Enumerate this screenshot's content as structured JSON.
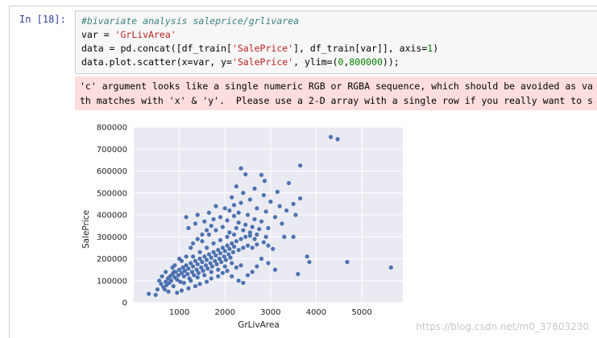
{
  "cell": {
    "prompt": "In  [18]:",
    "code_lines": [
      "#bivariate analysis saleprice/grlivarea",
      "var = 'GrLivArea'",
      "data = pd.concat([df_train['SalePrice'], df_train[var]], axis=1)",
      "data.plot.scatter(x=var, y='SalePrice', ylim=(0,800000));"
    ],
    "stderr_lines": [
      "'c' argument looks like a single numeric RGB or RGBA sequence, which should be avoided as va",
      "th matches with 'x' & 'y'.  Please use a 2-D array with a single row if you really want to s"
    ]
  },
  "watermark": "https://blog.csdn.net/m0_37803230",
  "colors": {
    "prompt": "#303f9f",
    "input_bg": "#f7f7f7",
    "stderr_bg": "#fddddd",
    "plot_bg": "#eaeaf2",
    "marker": "#4c72b0",
    "grid": "#ffffff"
  },
  "chart_data": {
    "type": "scatter",
    "title": "",
    "xlabel": "GrLivArea",
    "ylabel": "SalePrice",
    "xlim": [
      0,
      5900
    ],
    "ylim": [
      0,
      800000
    ],
    "xticks": [
      1000,
      2000,
      3000,
      4000,
      5000
    ],
    "yticks": [
      0,
      100000,
      200000,
      300000,
      400000,
      500000,
      600000,
      700000,
      800000
    ],
    "grid": true,
    "legend": "none",
    "points": [
      [
        330,
        40000
      ],
      [
        480,
        35000
      ],
      [
        520,
        60000
      ],
      [
        600,
        85000
      ],
      [
        650,
        70000
      ],
      [
        700,
        95000
      ],
      [
        720,
        80000
      ],
      [
        750,
        110000
      ],
      [
        780,
        90000
      ],
      [
        800,
        120000
      ],
      [
        820,
        100000
      ],
      [
        850,
        130000
      ],
      [
        870,
        75000
      ],
      [
        900,
        115000
      ],
      [
        920,
        140000
      ],
      [
        950,
        105000
      ],
      [
        980,
        125000
      ],
      [
        1000,
        150000
      ],
      [
        1020,
        95000
      ],
      [
        1050,
        135000
      ],
      [
        1080,
        160000
      ],
      [
        1100,
        120000
      ],
      [
        1120,
        145000
      ],
      [
        1150,
        170000
      ],
      [
        1180,
        130000
      ],
      [
        1200,
        155000
      ],
      [
        1220,
        110000
      ],
      [
        1250,
        180000
      ],
      [
        1280,
        140000
      ],
      [
        1300,
        165000
      ],
      [
        1320,
        125000
      ],
      [
        1350,
        190000
      ],
      [
        1380,
        150000
      ],
      [
        1400,
        175000
      ],
      [
        1420,
        135000
      ],
      [
        1450,
        200000
      ],
      [
        1480,
        160000
      ],
      [
        1500,
        185000
      ],
      [
        1520,
        145000
      ],
      [
        1550,
        210000
      ],
      [
        1580,
        170000
      ],
      [
        1600,
        195000
      ],
      [
        1620,
        155000
      ],
      [
        1650,
        220000
      ],
      [
        1680,
        180000
      ],
      [
        1700,
        205000
      ],
      [
        1720,
        165000
      ],
      [
        1750,
        230000
      ],
      [
        1780,
        190000
      ],
      [
        1800,
        215000
      ],
      [
        1820,
        175000
      ],
      [
        1850,
        240000
      ],
      [
        1880,
        200000
      ],
      [
        1900,
        225000
      ],
      [
        1920,
        185000
      ],
      [
        1950,
        250000
      ],
      [
        1980,
        210000
      ],
      [
        2000,
        235000
      ],
      [
        2020,
        195000
      ],
      [
        2050,
        260000
      ],
      [
        2080,
        220000
      ],
      [
        2100,
        245000
      ],
      [
        2120,
        205000
      ],
      [
        2150,
        270000
      ],
      [
        2180,
        230000
      ],
      [
        2200,
        255000
      ],
      [
        2250,
        280000
      ],
      [
        2300,
        240000
      ],
      [
        2350,
        290000
      ],
      [
        2400,
        250000
      ],
      [
        2450,
        300000
      ],
      [
        2500,
        260000
      ],
      [
        1100,
        90000
      ],
      [
        1250,
        100000
      ],
      [
        1400,
        115000
      ],
      [
        1550,
        125000
      ],
      [
        1700,
        140000
      ],
      [
        1850,
        150000
      ],
      [
        2000,
        165000
      ],
      [
        2150,
        180000
      ],
      [
        1300,
        210000
      ],
      [
        1450,
        230000
      ],
      [
        1600,
        250000
      ],
      [
        1750,
        270000
      ],
      [
        1900,
        285000
      ],
      [
        2050,
        300000
      ],
      [
        2200,
        310000
      ],
      [
        1500,
        280000
      ],
      [
        1650,
        310000
      ],
      [
        1800,
        330000
      ],
      [
        1950,
        345000
      ],
      [
        2100,
        320000
      ],
      [
        2250,
        340000
      ],
      [
        2400,
        330000
      ],
      [
        2550,
        320000
      ],
      [
        2700,
        310000
      ],
      [
        1350,
        360000
      ],
      [
        1200,
        340000
      ],
      [
        1550,
        370000
      ],
      [
        1750,
        380000
      ],
      [
        1900,
        390000
      ],
      [
        2050,
        375000
      ],
      [
        2200,
        395000
      ],
      [
        2300,
        365000
      ],
      [
        2450,
        355000
      ],
      [
        2600,
        345000
      ],
      [
        2750,
        335000
      ],
      [
        2900,
        300000
      ],
      [
        1150,
        390000
      ],
      [
        1400,
        400000
      ],
      [
        1650,
        410000
      ],
      [
        2100,
        420000
      ],
      [
        2300,
        410000
      ],
      [
        2500,
        400000
      ],
      [
        2650,
        380000
      ],
      [
        2800,
        370000
      ],
      [
        2950,
        340000
      ],
      [
        1800,
        440000
      ],
      [
        2000,
        430000
      ],
      [
        2200,
        445000
      ],
      [
        2350,
        455000
      ],
      [
        2550,
        470000
      ],
      [
        2700,
        430000
      ],
      [
        2900,
        415000
      ],
      [
        3100,
        390000
      ],
      [
        3250,
        360000
      ],
      [
        2150,
        480000
      ],
      [
        2400,
        500000
      ],
      [
        2650,
        520000
      ],
      [
        2850,
        490000
      ],
      [
        3000,
        460000
      ],
      [
        3200,
        440000
      ],
      [
        3350,
        420000
      ],
      [
        3500,
        450000
      ],
      [
        3650,
        475000
      ],
      [
        3550,
        400000
      ],
      [
        3400,
        545000
      ],
      [
        3150,
        505000
      ],
      [
        2250,
        530000
      ],
      [
        2450,
        585000
      ],
      [
        2350,
        612000
      ],
      [
        2800,
        582000
      ],
      [
        2870,
        555000
      ],
      [
        3650,
        625000
      ],
      [
        3300,
        300000
      ],
      [
        3500,
        300000
      ],
      [
        3600,
        130000
      ],
      [
        3800,
        210000
      ],
      [
        3850,
        185000
      ],
      [
        2700,
        165000
      ],
      [
        2800,
        200000
      ],
      [
        2950,
        180000
      ],
      [
        3100,
        150000
      ],
      [
        2600,
        140000
      ],
      [
        2500,
        125000
      ],
      [
        2300,
        100000
      ],
      [
        2150,
        120000
      ],
      [
        2400,
        90000
      ],
      [
        4320,
        755000
      ],
      [
        4470,
        745000
      ],
      [
        4680,
        185000
      ],
      [
        5640,
        160000
      ],
      [
        900,
        170000
      ],
      [
        1050,
        190000
      ],
      [
        1150,
        210000
      ],
      [
        1000,
        200000
      ],
      [
        850,
        160000
      ],
      [
        700,
        140000
      ],
      [
        620,
        120000
      ],
      [
        560,
        100000
      ],
      [
        680,
        60000
      ],
      [
        760,
        50000
      ],
      [
        1300,
        270000
      ],
      [
        1400,
        290000
      ],
      [
        1500,
        310000
      ],
      [
        1250,
        250000
      ],
      [
        1600,
        330000
      ],
      [
        1700,
        350000
      ],
      [
        2600,
        250000
      ],
      [
        2700,
        265000
      ],
      [
        2850,
        275000
      ],
      [
        2950,
        260000
      ],
      [
        3050,
        245000
      ],
      [
        2650,
        290000
      ],
      [
        2550,
        305000
      ],
      [
        1850,
        120000
      ],
      [
        1950,
        135000
      ],
      [
        2050,
        145000
      ],
      [
        2250,
        160000
      ],
      [
        2350,
        170000
      ],
      [
        1700,
        110000
      ],
      [
        1600,
        95000
      ],
      [
        1450,
        85000
      ],
      [
        1350,
        75000
      ],
      [
        1200,
        65000
      ],
      [
        1050,
        55000
      ],
      [
        950,
        45000
      ],
      [
        880,
        140000
      ]
    ]
  }
}
